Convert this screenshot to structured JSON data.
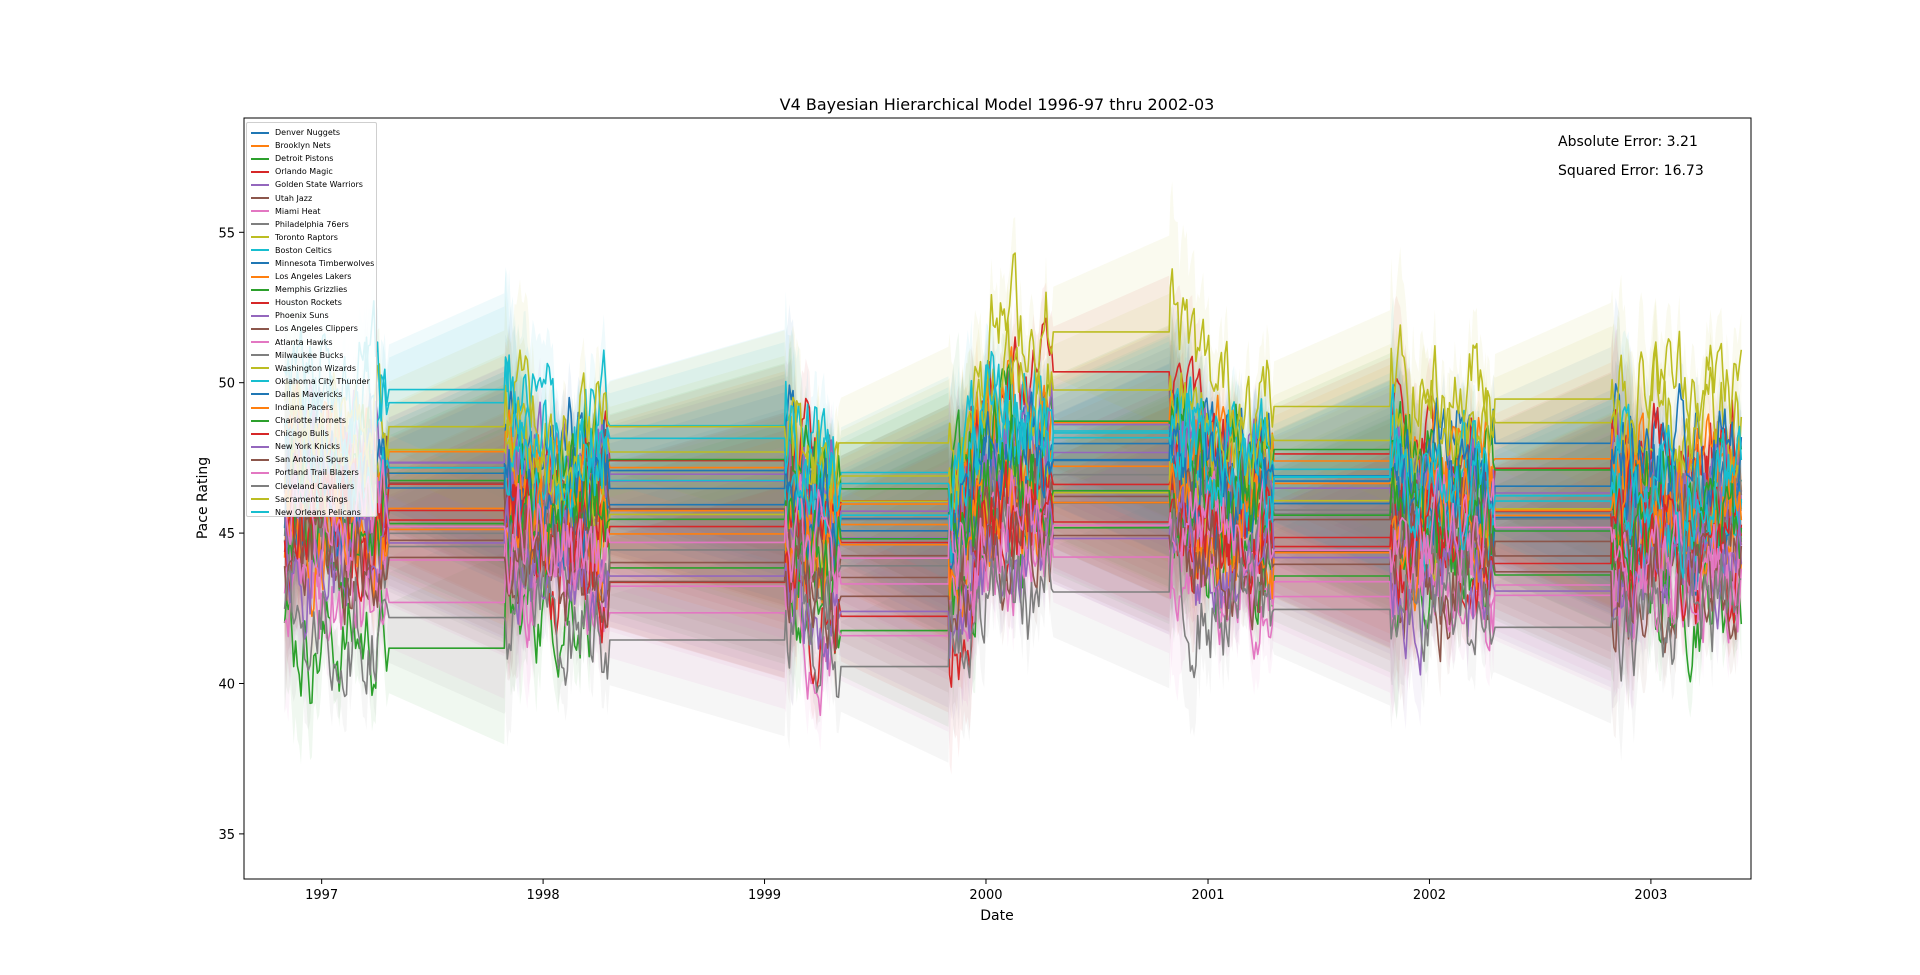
{
  "chart_data": {
    "type": "line",
    "title": "V4 Bayesian Hierarchical Model 1996-97 thru 2002-03",
    "xlabel": "Date",
    "ylabel": "Pace Rating",
    "xlim": [
      "1996-08-26",
      "2003-06-15"
    ],
    "ylim": [
      33.5,
      58.8
    ],
    "x_ticks": [
      "1997",
      "1998",
      "1999",
      "2000",
      "2001",
      "2002",
      "2003"
    ],
    "y_ticks": [
      "35",
      "40",
      "45",
      "50",
      "55"
    ],
    "grid": false,
    "legend_position": "upper-left",
    "shaded_band": "uncertainty interval around each series",
    "seasons": [
      {
        "start": "1996-11-01",
        "end": "1997-04-20"
      },
      {
        "start": "1997-10-31",
        "end": "1998-04-19"
      },
      {
        "start": "1999-02-05",
        "end": "1999-05-05"
      },
      {
        "start": "1999-11-02",
        "end": "2000-04-19"
      },
      {
        "start": "2000-10-31",
        "end": "2001-04-18"
      },
      {
        "start": "2001-10-30",
        "end": "2002-04-17"
      },
      {
        "start": "2002-10-29",
        "end": "2003-05-31"
      }
    ],
    "series": [
      {
        "name": "Denver Nuggets",
        "color": "#1f77b4",
        "season_means": [
          47.0,
          47.5,
          46.0,
          48.0,
          47.0,
          47.5,
          47.0
        ]
      },
      {
        "name": "Brooklyn Nets",
        "color": "#ff7f0e",
        "season_means": [
          46.0,
          45.5,
          45.0,
          47.0,
          46.5,
          46.0,
          46.5
        ]
      },
      {
        "name": "Detroit Pistons",
        "color": "#2ca02c",
        "season_means": [
          41.5,
          43.0,
          42.0,
          45.0,
          44.0,
          43.5,
          43.0
        ]
      },
      {
        "name": "Orlando Magic",
        "color": "#d62728",
        "season_means": [
          47.0,
          47.0,
          46.5,
          50.0,
          47.5,
          47.5,
          48.0
        ]
      },
      {
        "name": "Golden State Warriors",
        "color": "#9467bd",
        "season_means": [
          47.5,
          46.0,
          45.0,
          48.0,
          44.5,
          45.0,
          46.0
        ]
      },
      {
        "name": "Utah Jazz",
        "color": "#8c564b",
        "season_means": [
          45.0,
          44.5,
          43.5,
          46.0,
          44.0,
          44.0,
          44.5
        ]
      },
      {
        "name": "Miami Heat",
        "color": "#e377c2",
        "season_means": [
          42.5,
          42.5,
          41.5,
          44.0,
          43.0,
          43.0,
          43.0
        ]
      },
      {
        "name": "Philadelphia 76ers",
        "color": "#7f7f7f",
        "season_means": [
          44.5,
          46.0,
          45.5,
          47.0,
          45.5,
          45.5,
          45.0
        ]
      },
      {
        "name": "Toronto Raptors",
        "color": "#bcbd22",
        "season_means": [
          47.0,
          46.0,
          45.5,
          47.0,
          46.0,
          46.0,
          46.0
        ]
      },
      {
        "name": "Boston Celtics",
        "color": "#17becf",
        "season_means": [
          49.5,
          48.5,
          47.5,
          49.0,
          47.5,
          46.5,
          45.5
        ]
      },
      {
        "name": "Minnesota Timberwolves",
        "color": "#1f77b4",
        "season_means": [
          47.0,
          46.0,
          45.5,
          47.5,
          46.0,
          46.0,
          46.0
        ]
      },
      {
        "name": "Los Angeles Lakers",
        "color": "#ff7f0e",
        "season_means": [
          48.0,
          47.0,
          46.0,
          48.5,
          47.0,
          47.5,
          47.0
        ]
      },
      {
        "name": "Memphis Grizzlies",
        "color": "#2ca02c",
        "season_means": [
          46.5,
          47.5,
          46.0,
          48.5,
          48.0,
          47.0,
          46.5
        ]
      },
      {
        "name": "Houston Rockets",
        "color": "#d62728",
        "season_means": [
          46.0,
          45.5,
          44.5,
          46.5,
          45.0,
          45.5,
          46.0
        ]
      },
      {
        "name": "Phoenix Suns",
        "color": "#9467bd",
        "season_means": [
          47.5,
          47.0,
          46.0,
          48.0,
          46.5,
          46.0,
          46.0
        ]
      },
      {
        "name": "Los Angeles Clippers",
        "color": "#8c564b",
        "season_means": [
          46.0,
          45.5,
          44.5,
          46.5,
          45.5,
          45.0,
          45.0
        ]
      },
      {
        "name": "Atlanta Hawks",
        "color": "#e377c2",
        "season_means": [
          44.0,
          43.5,
          43.0,
          45.0,
          44.0,
          44.0,
          44.0
        ]
      },
      {
        "name": "Milwaukee Bucks",
        "color": "#7f7f7f",
        "season_means": [
          45.5,
          45.0,
          44.0,
          46.5,
          45.5,
          45.5,
          45.5
        ]
      },
      {
        "name": "Washington Wizards",
        "color": "#bcbd22",
        "season_means": [
          48.0,
          47.5,
          47.0,
          49.5,
          48.0,
          48.5,
          48.0
        ]
      },
      {
        "name": "Oklahoma City Thunder",
        "color": "#17becf",
        "season_means": [
          47.0,
          46.5,
          46.0,
          48.0,
          47.0,
          46.5,
          46.0
        ]
      },
      {
        "name": "Dallas Mavericks",
        "color": "#1f77b4",
        "season_means": [
          46.5,
          46.0,
          45.0,
          47.5,
          46.5,
          47.0,
          47.0
        ]
      },
      {
        "name": "Indiana Pacers",
        "color": "#ff7f0e",
        "season_means": [
          45.5,
          45.0,
          44.5,
          46.0,
          45.0,
          45.5,
          45.5
        ]
      },
      {
        "name": "Charlotte Hornets",
        "color": "#2ca02c",
        "season_means": [
          45.0,
          45.5,
          44.5,
          46.5,
          45.5,
          45.0,
          45.0
        ]
      },
      {
        "name": "Chicago Bulls",
        "color": "#d62728",
        "season_means": [
          45.5,
          44.0,
          42.0,
          45.0,
          44.5,
          44.0,
          44.5
        ]
      },
      {
        "name": "New York Knicks",
        "color": "#9467bd",
        "season_means": [
          44.0,
          43.5,
          42.5,
          44.5,
          43.5,
          43.0,
          43.5
        ]
      },
      {
        "name": "San Antonio Spurs",
        "color": "#8c564b",
        "season_means": [
          44.5,
          44.0,
          43.0,
          45.0,
          44.0,
          43.5,
          44.0
        ]
      },
      {
        "name": "Portland Trail Blazers",
        "color": "#e377c2",
        "season_means": [
          45.0,
          44.5,
          44.0,
          45.5,
          44.5,
          44.5,
          44.5
        ]
      },
      {
        "name": "Cleveland Cavaliers",
        "color": "#7f7f7f",
        "season_means": [
          42.0,
          42.0,
          41.0,
          43.0,
          42.5,
          42.0,
          42.5
        ]
      },
      {
        "name": "Sacramento Kings",
        "color": "#bcbd22",
        "season_means": [
          49.0,
          48.5,
          48.0,
          52.0,
          49.5,
          50.0,
          50.0
        ]
      },
      {
        "name": "New Orleans Pelicans",
        "color": "#17becf",
        "season_means": [
          50.0,
          48.0,
          47.0,
          48.5,
          47.5,
          46.5,
          46.0
        ]
      }
    ],
    "annotations": {
      "absolute_error": "Absolute Error: 3.21",
      "squared_error": "Squared Error: 16.73"
    }
  }
}
